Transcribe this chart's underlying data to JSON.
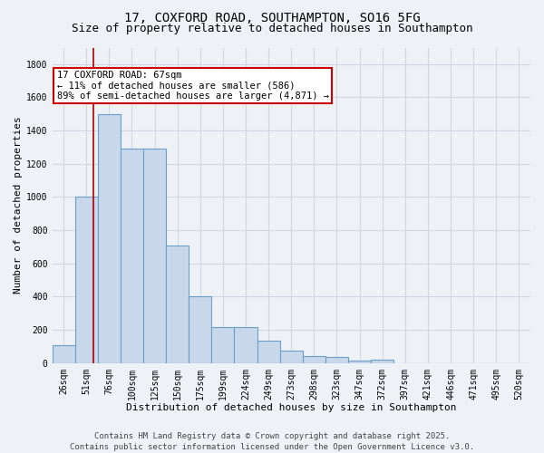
{
  "title1": "17, COXFORD ROAD, SOUTHAMPTON, SO16 5FG",
  "title2": "Size of property relative to detached houses in Southampton",
  "xlabel": "Distribution of detached houses by size in Southampton",
  "ylabel": "Number of detached properties",
  "categories": [
    "26sqm",
    "51sqm",
    "76sqm",
    "100sqm",
    "125sqm",
    "150sqm",
    "175sqm",
    "199sqm",
    "224sqm",
    "249sqm",
    "273sqm",
    "298sqm",
    "323sqm",
    "347sqm",
    "372sqm",
    "397sqm",
    "421sqm",
    "446sqm",
    "471sqm",
    "495sqm",
    "520sqm"
  ],
  "values": [
    110,
    1000,
    1500,
    1290,
    1290,
    710,
    400,
    215,
    215,
    135,
    75,
    40,
    35,
    15,
    20,
    0,
    0,
    0,
    0,
    0,
    0
  ],
  "bar_color": "#c8d8ea",
  "bar_edge_color": "#6b9fc8",
  "vline_color": "#aa0000",
  "annotation_line1": "17 COXFORD ROAD: 67sqm",
  "annotation_line2": "← 11% of detached houses are smaller (586)",
  "annotation_line3": "89% of semi-detached houses are larger (4,871) →",
  "annotation_box_facecolor": "#ffffff",
  "annotation_box_edgecolor": "#cc0000",
  "ylim": [
    0,
    1900
  ],
  "yticks": [
    0,
    200,
    400,
    600,
    800,
    1000,
    1200,
    1400,
    1600,
    1800
  ],
  "bg_color": "#eef2f7",
  "grid_color": "#d0d8e4",
  "title1_fontsize": 10,
  "title2_fontsize": 9,
  "xlabel_fontsize": 8,
  "ylabel_fontsize": 8,
  "tick_fontsize": 7,
  "annot_fontsize": 7.5,
  "footer_fontsize": 6.5,
  "footer_text": "Contains HM Land Registry data © Crown copyright and database right 2025.\nContains public sector information licensed under the Open Government Licence v3.0."
}
